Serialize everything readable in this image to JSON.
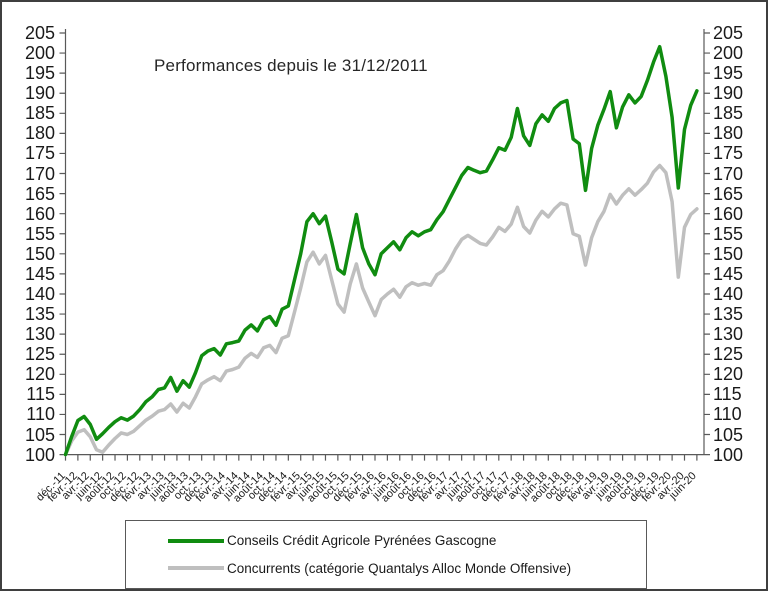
{
  "chart_data": {
    "type": "line",
    "title": "Performances depuis le 31/12/2011",
    "xlabel": "",
    "ylabel": "",
    "ylim": [
      100,
      205
    ],
    "y_tick_step": 5,
    "grid": false,
    "legend_position": "bottom",
    "y_ticks": [
      100,
      105,
      110,
      115,
      120,
      125,
      130,
      135,
      140,
      145,
      150,
      155,
      160,
      165,
      170,
      175,
      180,
      185,
      190,
      195,
      200,
      205
    ],
    "x_tick_labels": [
      "déc.-11",
      "févr.-12",
      "avr.-12",
      "juin-12",
      "août-12",
      "oct.-12",
      "déc.-12",
      "févr.-13",
      "avr.-13",
      "juin-13",
      "août-13",
      "oct.-13",
      "déc.-13",
      "févr.-14",
      "avr.-14",
      "juin-14",
      "août-14",
      "oct.-14",
      "déc.-14",
      "févr.-15",
      "avr.-15",
      "juin-15",
      "août-15",
      "oct.-15",
      "déc.-15",
      "févr.-16",
      "avr.-16",
      "juin-16",
      "août-16",
      "oct.-16",
      "déc.-16",
      "févr.-17",
      "avr.-17",
      "juin-17",
      "août-17",
      "oct.-17",
      "déc.-17",
      "févr.-18",
      "avr.-18",
      "juin-18",
      "août-18",
      "oct.-18",
      "déc.-18",
      "févr.-19",
      "avr.-19",
      "juin-19",
      "août-19",
      "oct.-19",
      "déc.-19",
      "févr.-20",
      "avr.-20",
      "juin-20"
    ],
    "x_months_per_tick": 2,
    "series": [
      {
        "name": "Conseils Crédit Agricole Pyrénées Gascogne",
        "color": "#108c10",
        "values": [
          100,
          104.5,
          108.5,
          109.5,
          107.5,
          103.8,
          105.2,
          106.8,
          108.2,
          109.2,
          108.6,
          109.6,
          111.2,
          113.2,
          114.4,
          116.2,
          116.6,
          119.2,
          115.8,
          118.4,
          116.8,
          120.4,
          124.6,
          125.8,
          126.4,
          124.8,
          127.6,
          127.9,
          128.3,
          131.0,
          132.3,
          130.8,
          133.6,
          134.4,
          132.2,
          136.2,
          137.0,
          143.5,
          150.0,
          158.0,
          160.0,
          157.5,
          159.4,
          153.0,
          146.2,
          145.0,
          152.5,
          159.8,
          151.5,
          147.5,
          144.8,
          150.0,
          151.5,
          153.0,
          151.0,
          154.0,
          155.5,
          154.5,
          155.5,
          156.0,
          158.5,
          160.5,
          163.5,
          166.5,
          169.5,
          171.5,
          170.8,
          170.2,
          170.6,
          173.4,
          176.4,
          175.8,
          179.0,
          186.2,
          179.4,
          177.0,
          182.4,
          184.6,
          183.0,
          186.2,
          187.6,
          188.2,
          178.6,
          177.4,
          165.8,
          176.2,
          182.0,
          186.0,
          190.4,
          181.4,
          186.6,
          189.6,
          187.6,
          189.2,
          193.2,
          197.8,
          201.6,
          194.2,
          184.0,
          166.4,
          181.0,
          187.0,
          190.6
        ]
      },
      {
        "name": "Concurrents (catégorie Quantalys Alloc Monde Offensive)",
        "color": "#bfbfbf",
        "values": [
          100,
          103.4,
          105.6,
          106.2,
          104.4,
          101.2,
          100.6,
          102.4,
          104.0,
          105.4,
          105.0,
          105.8,
          107.2,
          108.6,
          109.6,
          110.8,
          111.2,
          112.6,
          110.6,
          112.8,
          111.6,
          114.4,
          117.6,
          118.6,
          119.4,
          118.4,
          120.8,
          121.2,
          121.8,
          124.0,
          125.2,
          124.2,
          126.6,
          127.2,
          125.4,
          129.0,
          129.6,
          135.5,
          141.5,
          148.0,
          150.4,
          147.5,
          149.6,
          143.5,
          137.5,
          135.5,
          142.5,
          147.5,
          141.5,
          138.0,
          134.6,
          138.6,
          140.0,
          141.2,
          139.2,
          141.8,
          142.8,
          142.2,
          142.6,
          142.2,
          144.8,
          145.8,
          148.2,
          151.2,
          153.6,
          154.6,
          153.6,
          152.6,
          152.2,
          154.2,
          156.6,
          155.6,
          157.4,
          161.6,
          156.8,
          155.2,
          158.4,
          160.6,
          159.2,
          161.2,
          162.6,
          162.2,
          155.0,
          154.4,
          147.2,
          154.0,
          158.0,
          160.6,
          164.8,
          162.4,
          164.6,
          166.2,
          164.6,
          166.0,
          167.6,
          170.4,
          172.0,
          170.2,
          163.0,
          144.2,
          156.6,
          159.8,
          161.2
        ]
      }
    ]
  }
}
